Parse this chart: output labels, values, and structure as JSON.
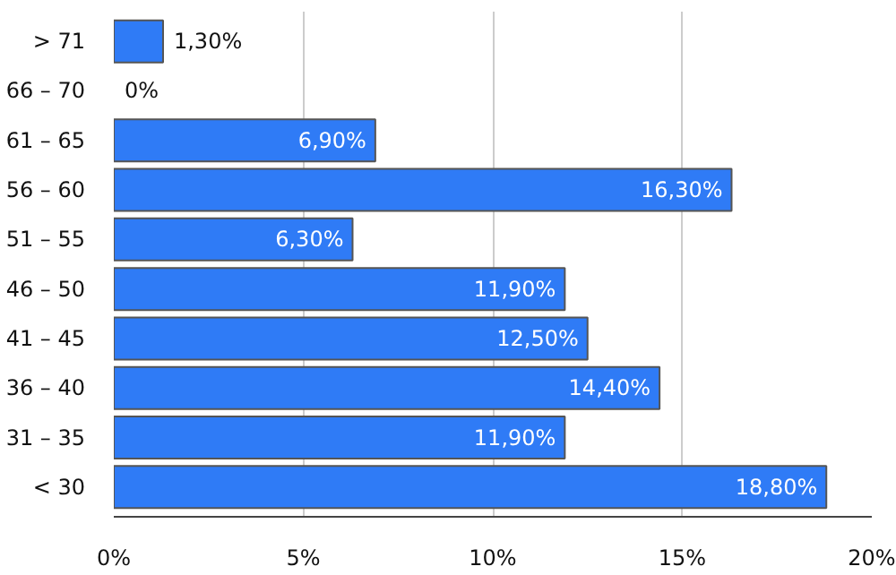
{
  "chart_data": {
    "type": "bar",
    "orientation": "horizontal",
    "categories": [
      "> 71",
      "66 – 70",
      "61 – 65",
      "56 – 60",
      "51 – 55",
      "46 – 50",
      "41 – 45",
      "36 – 40",
      "31 – 35",
      "< 30"
    ],
    "values": [
      1.3,
      0,
      6.9,
      16.3,
      6.3,
      11.9,
      12.5,
      14.4,
      11.9,
      18.8
    ],
    "value_labels": [
      "1,30%",
      "0%",
      "6,90%",
      "16,30%",
      "6,30%",
      "11,90%",
      "12,50%",
      "14,40%",
      "11,90%",
      "18,80%"
    ],
    "color": "#2f7bf6",
    "xlim": [
      0,
      20
    ],
    "xticks": [
      {
        "value": 0,
        "label": "0%"
      },
      {
        "value": 5,
        "label": "5%"
      },
      {
        "value": 10,
        "label": "10%"
      },
      {
        "value": 15,
        "label": "15%"
      },
      {
        "value": 20,
        "label": "20%"
      }
    ],
    "grid": "x"
  }
}
